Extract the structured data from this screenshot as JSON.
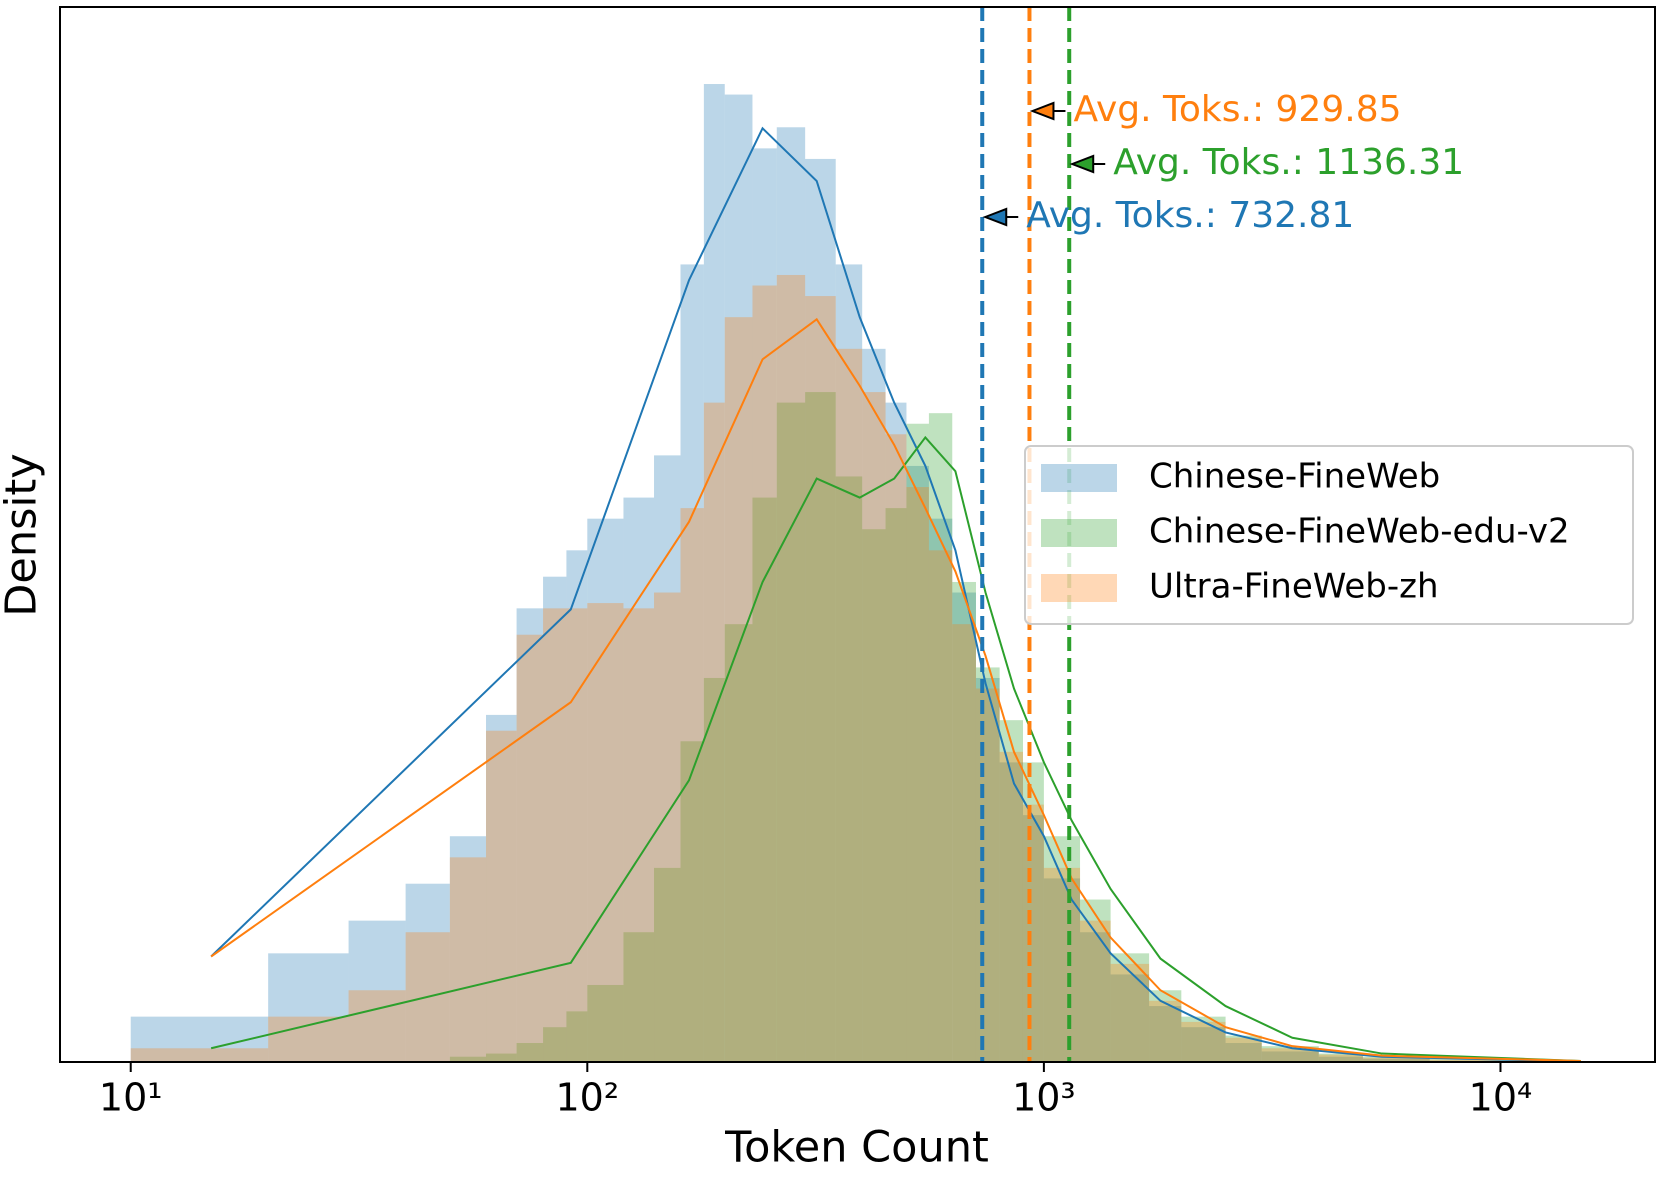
{
  "chart_data": {
    "type": "histogram",
    "xlabel": "Token Count",
    "ylabel": "Density",
    "xscale": "log",
    "xlim": [
      7,
      21800
    ],
    "ylim": [
      0,
      1
    ],
    "xticks": [
      {
        "value": 10,
        "label": "10¹"
      },
      {
        "value": 100,
        "label": "10²"
      },
      {
        "value": 1000,
        "label": "10³"
      },
      {
        "value": 10000,
        "label": "10⁴"
      }
    ],
    "yticks": [],
    "legend": "center right",
    "bins": [
      10,
      20,
      30,
      40,
      50,
      60,
      70,
      80,
      90,
      100,
      120,
      140,
      160,
      180,
      200,
      230,
      260,
      300,
      350,
      400,
      450,
      500,
      560,
      630,
      710,
      800,
      900,
      1000,
      1200,
      1400,
      1700,
      2000,
      2500,
      3000,
      4000,
      5000,
      7000,
      10000,
      15000
    ],
    "line_x": [
      15,
      92,
      167,
      242,
      318,
      395,
      470,
      550,
      640,
      745,
      860,
      1000,
      1150,
      1400,
      1800,
      2500,
      3500,
      5500,
      15000
    ],
    "series": [
      {
        "name": "Chinese-FineWeb",
        "color": "#1f77b4",
        "values": [
          0.043,
          0.103,
          0.134,
          0.169,
          0.214,
          0.329,
          0.43,
          0.46,
          0.485,
          0.515,
          0.535,
          0.575,
          0.756,
          0.927,
          0.917,
          0.866,
          0.886,
          0.856,
          0.756,
          0.676,
          0.625,
          0.565,
          0.515,
          0.445,
          0.364,
          0.284,
          0.234,
          0.174,
          0.123,
          0.083,
          0.053,
          0.033,
          0.018,
          0.01,
          0.005,
          0.003,
          0.001,
          0.0005
        ],
        "line_values": [
          0.1,
          0.429,
          0.741,
          0.885,
          0.835,
          0.706,
          0.625,
          0.565,
          0.485,
          0.359,
          0.264,
          0.214,
          0.154,
          0.103,
          0.058,
          0.028,
          0.013,
          0.005,
          0.0005
        ]
      },
      {
        "name": "Chinese-FineWeb-edu-v2",
        "color": "#2ca02c",
        "values": [
          0,
          0,
          0,
          0,
          0.005,
          0.008,
          0.018,
          0.033,
          0.048,
          0.073,
          0.123,
          0.184,
          0.304,
          0.364,
          0.415,
          0.535,
          0.625,
          0.635,
          0.555,
          0.505,
          0.525,
          0.605,
          0.615,
          0.455,
          0.374,
          0.324,
          0.284,
          0.214,
          0.154,
          0.103,
          0.068,
          0.043,
          0.025,
          0.015,
          0.008,
          0.005,
          0.003,
          0.0015
        ],
        "line_values": [
          0.013,
          0.094,
          0.267,
          0.455,
          0.553,
          0.535,
          0.553,
          0.592,
          0.56,
          0.445,
          0.354,
          0.284,
          0.229,
          0.164,
          0.098,
          0.053,
          0.023,
          0.008,
          0.001
        ]
      },
      {
        "name": "Ultra-FineWeb-zh",
        "color": "#ff7f0e",
        "values": [
          0.013,
          0.043,
          0.068,
          0.123,
          0.194,
          0.314,
          0.405,
          0.43,
          0.43,
          0.435,
          0.43,
          0.445,
          0.525,
          0.625,
          0.706,
          0.736,
          0.746,
          0.726,
          0.676,
          0.635,
          0.595,
          0.545,
          0.485,
          0.415,
          0.354,
          0.294,
          0.244,
          0.184,
          0.134,
          0.093,
          0.058,
          0.038,
          0.023,
          0.013,
          0.007,
          0.004,
          0.002,
          0.001
        ],
        "line_values": [
          0.1,
          0.341,
          0.512,
          0.666,
          0.704,
          0.641,
          0.585,
          0.525,
          0.465,
          0.385,
          0.294,
          0.234,
          0.174,
          0.118,
          0.068,
          0.033,
          0.015,
          0.006,
          0.001
        ]
      }
    ],
    "annotations": [
      {
        "text": "Avg. Toks.: 929.85",
        "x": 929.85,
        "series": 2
      },
      {
        "text": "Avg. Toks.: 1136.31",
        "x": 1136.31,
        "series": 1
      },
      {
        "text": "Avg. Toks.: 732.81",
        "x": 732.81,
        "series": 0
      }
    ]
  }
}
